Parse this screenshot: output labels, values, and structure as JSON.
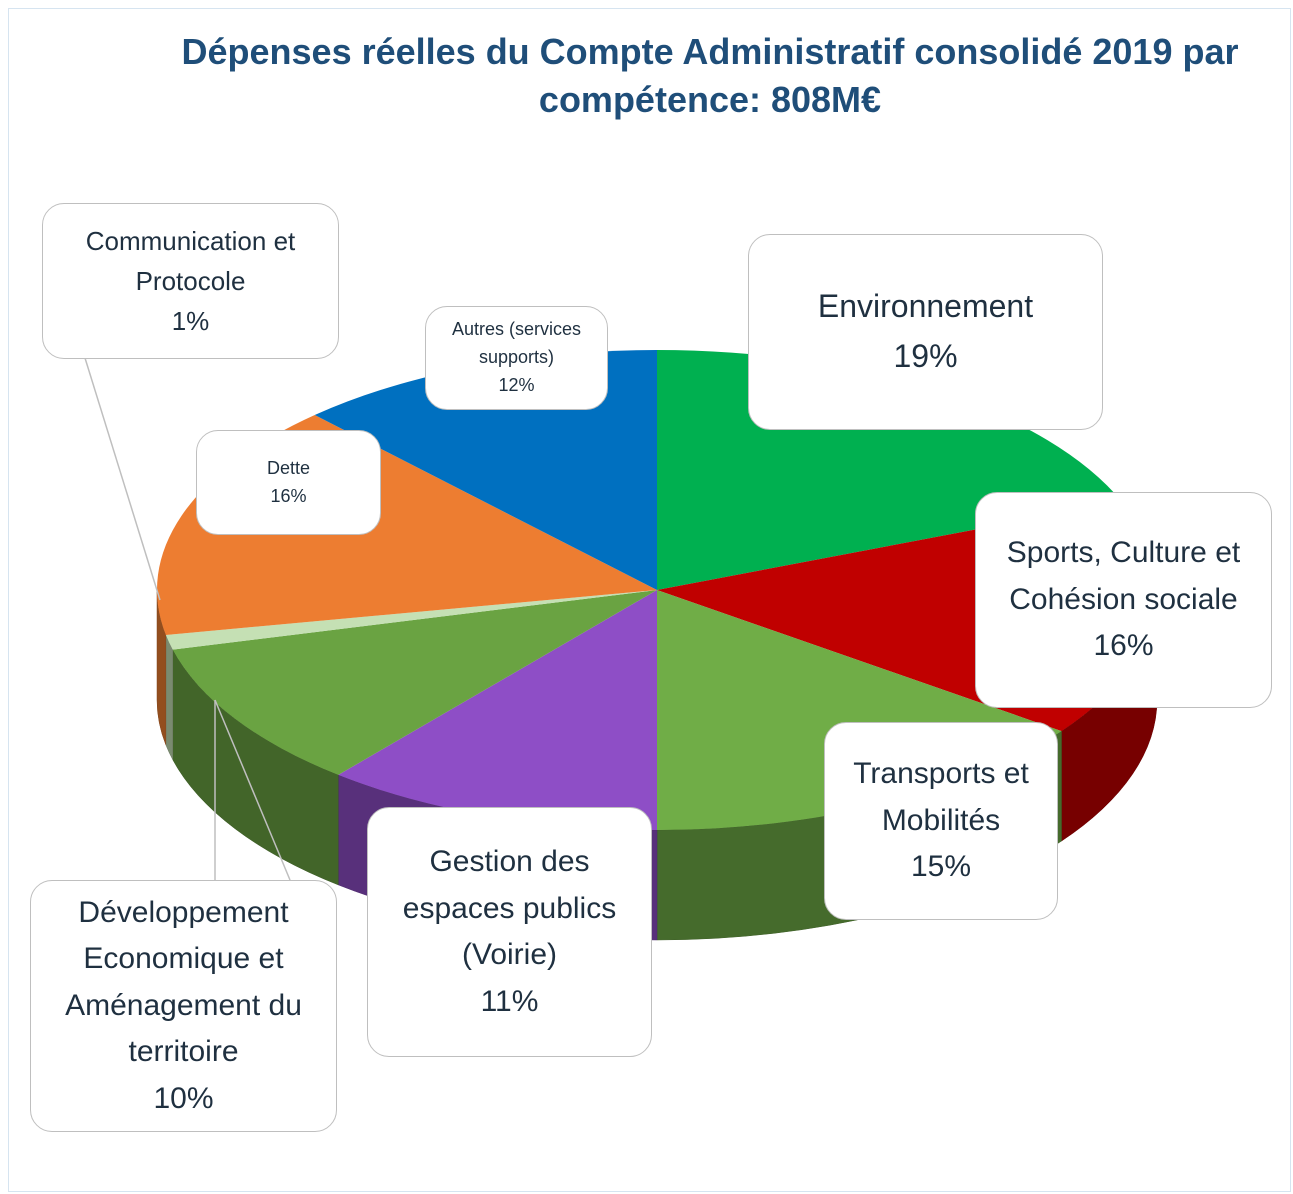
{
  "chart_data": {
    "type": "pie",
    "title": "Dépenses réelles du Compte Administratif consolidé 2019 par compétence: 808M€",
    "categories": [
      "Environnement",
      "Sports, Culture et Cohésion sociale",
      "Transports et Mobilités",
      "Gestion des espaces publics (Voirie)",
      "Développement Economique et Aménagement du territoire",
      "Communication et Protocole",
      "Dette",
      "Autres (services supports)"
    ],
    "values": [
      19,
      16,
      15,
      11,
      10,
      1,
      16,
      12
    ],
    "value_labels": [
      "19%",
      "16%",
      "15%",
      "11%",
      "10%",
      "1%",
      "16%",
      "12%"
    ],
    "colors": [
      "#00b050",
      "#c00000",
      "#70ad47",
      "#8e4ec6",
      "#6aa342",
      "#c5e0b4",
      "#ed7d31",
      "#0070c0"
    ]
  }
}
